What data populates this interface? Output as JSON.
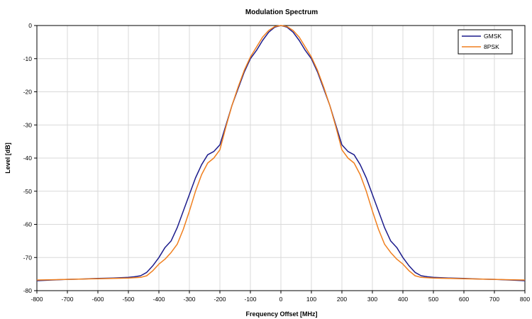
{
  "chart_data": {
    "type": "line",
    "title": "Modulation Spectrum",
    "xlabel": "Frequency Offset [MHz]",
    "ylabel": "Level [dB]",
    "xlim": [
      -800,
      800
    ],
    "ylim": [
      -80,
      0
    ],
    "xticks": [
      "-800",
      "-700",
      "-600",
      "-500",
      "-400",
      "-300",
      "-200",
      "-100",
      "0",
      "100",
      "200",
      "300",
      "400",
      "500",
      "600",
      "700",
      "800"
    ],
    "yticks": [
      "0",
      "-10",
      "-20",
      "-30",
      "-40",
      "-50",
      "-60",
      "-70",
      "-80"
    ],
    "grid": true,
    "legend_position": "top-right",
    "series": [
      {
        "name": "GMSK",
        "color": "#1c1c8c",
        "x": [
          0,
          20,
          40,
          60,
          80,
          100,
          120,
          140,
          160,
          180,
          200,
          220,
          240,
          260,
          280,
          300,
          320,
          340,
          360,
          380,
          400,
          420,
          440,
          460,
          480,
          500,
          550,
          600,
          650,
          700,
          750,
          800
        ],
        "y": [
          0,
          -0.5,
          -2,
          -4.5,
          -7.5,
          -10,
          -14,
          -19,
          -24,
          -30,
          -36,
          -38,
          -39,
          -42,
          -46,
          -51,
          -56,
          -61,
          -65,
          -67,
          -70,
          -72.5,
          -74.5,
          -75.5,
          -75.8,
          -76,
          -76.2,
          -76.3,
          -76.5,
          -76.6,
          -76.8,
          -77
        ]
      },
      {
        "name": "8PSK",
        "color": "#f07f1e",
        "x": [
          0,
          20,
          40,
          60,
          80,
          100,
          120,
          140,
          160,
          180,
          200,
          220,
          240,
          260,
          280,
          300,
          320,
          340,
          360,
          380,
          400,
          420,
          440,
          460,
          480,
          500,
          550,
          600,
          650,
          700,
          750,
          800
        ],
        "y": [
          0,
          -0.3,
          -1.5,
          -3.5,
          -6.5,
          -9.5,
          -13.5,
          -18.5,
          -24,
          -30.5,
          -37.5,
          -40,
          -41.5,
          -45,
          -50,
          -56,
          -61.5,
          -66,
          -68.5,
          -70.5,
          -72,
          -74,
          -75.5,
          -76,
          -76.1,
          -76.2,
          -76.3,
          -76.4,
          -76.5,
          -76.6,
          -76.7,
          -76.8
        ]
      }
    ]
  }
}
